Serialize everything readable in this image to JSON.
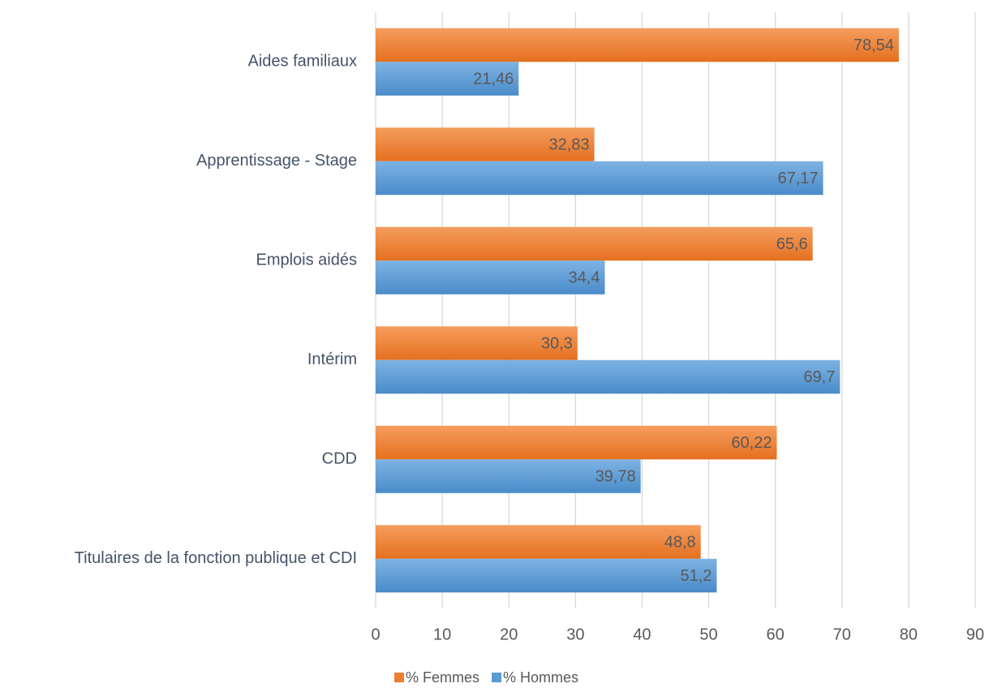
{
  "chart_data": {
    "type": "bar",
    "orientation": "horizontal",
    "categories": [
      "Aides familiaux",
      "Apprentissage - Stage",
      "Emplois aidés",
      "Intérim",
      "CDD",
      "Titulaires de la fonction publique et CDI"
    ],
    "series": [
      {
        "name": "% Femmes",
        "color": "#ed7d31",
        "values": [
          78.54,
          32.83,
          65.6,
          30.3,
          60.22,
          48.8
        ],
        "value_labels": [
          "78,54",
          "32,83",
          "65,6",
          "30,3",
          "60,22",
          "48,8"
        ]
      },
      {
        "name": "% Hommes",
        "color": "#5b9bd5",
        "values": [
          21.46,
          67.17,
          34.4,
          69.7,
          39.78,
          51.2
        ],
        "value_labels": [
          "21,46",
          "67,17",
          "34,4",
          "69,7",
          "39,78",
          "51,2"
        ]
      }
    ],
    "xlim": [
      0,
      90
    ],
    "xticks": [
      0,
      10,
      20,
      30,
      40,
      50,
      60,
      70,
      80,
      90
    ],
    "grid": true,
    "legend": "bottom"
  }
}
